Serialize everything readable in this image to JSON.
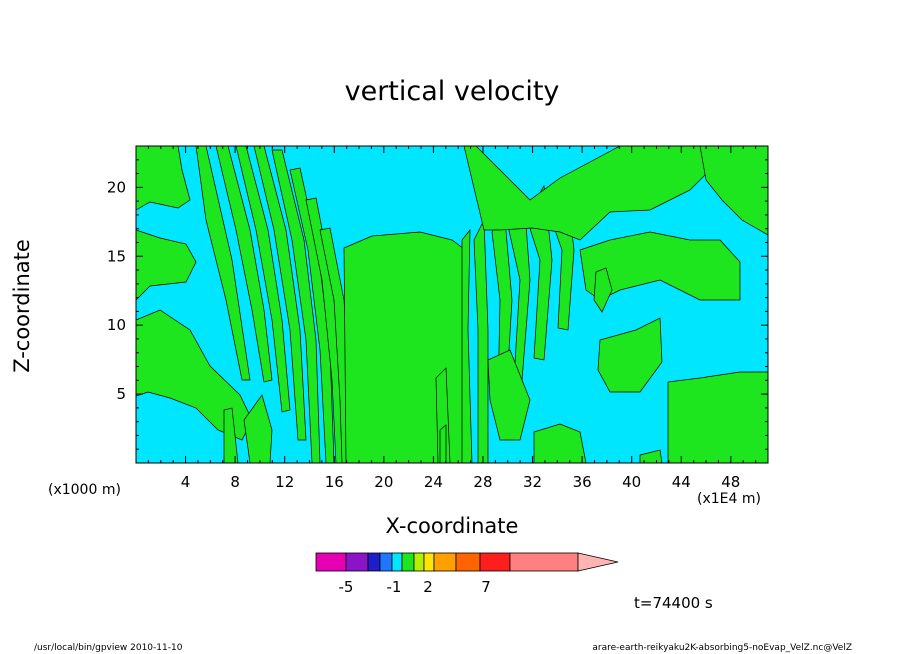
{
  "chart_data": {
    "type": "heatmap",
    "title": "vertical velocity",
    "xlabel": "X-coordinate",
    "ylabel": "Z-coordinate",
    "x_unit_label": "(x1E4 m)",
    "y_unit_label": "(x1000 m)",
    "xlim": [
      0,
      51
    ],
    "ylim": [
      0,
      23
    ],
    "x_ticks": [
      4,
      8,
      12,
      16,
      20,
      24,
      28,
      32,
      36,
      40,
      44,
      48
    ],
    "y_ticks": [
      5,
      10,
      15,
      20
    ],
    "colorbar": {
      "tick_labels": [
        "-5",
        "-1",
        "2",
        "7"
      ],
      "colors": [
        "#e600b4",
        "#8c14c8",
        "#1e1ec8",
        "#1e78ff",
        "#00e6ff",
        "#1ee61e",
        "#b4f000",
        "#ffe600",
        "#ffa000",
        "#ff6400",
        "#ff1e1e",
        "#ff8080",
        "#ffb4b4"
      ]
    },
    "field_colors": {
      "negative": "#00e6ff",
      "positive": "#1ee61e"
    },
    "time_label": "t=74400 s"
  },
  "footer": {
    "left": "/usr/local/bin/gpview  2010-11-10",
    "right": "arare-earth-reikyaku2K-absorbing5-noEvap_VelZ.nc@VelZ"
  }
}
